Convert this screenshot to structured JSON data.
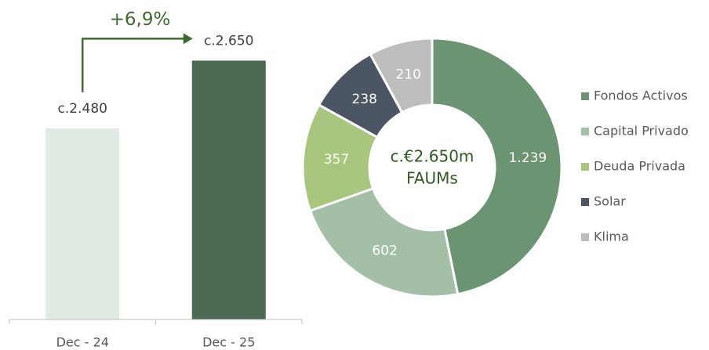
{
  "chart_data": [
    {
      "type": "bar",
      "categories": [
        "Dec - 24",
        "Dec - 25"
      ],
      "values": [
        2480,
        2650
      ],
      "value_labels": [
        "c.2.480",
        "c.2.650"
      ],
      "colors": [
        "#e1ebe3",
        "#4d6b53"
      ],
      "ylim": [
        2000,
        2700
      ],
      "annotation": "+6,9%",
      "annotation_color": "#3d6b2f"
    },
    {
      "type": "donut",
      "categories": [
        "Fondos Activos",
        "Capital Privado",
        "Deuda Privada",
        "Solar",
        "Klima"
      ],
      "values": [
        1239,
        602,
        357,
        238,
        210
      ],
      "value_labels": [
        "1.239",
        "602",
        "357",
        "238",
        "210"
      ],
      "colors": [
        "#6a9472",
        "#a3bfa8",
        "#a9c67f",
        "#4b5563",
        "#bdbdbd"
      ],
      "center_text": [
        "c.€2.650m",
        "FAUMs"
      ],
      "legend": "right"
    }
  ]
}
